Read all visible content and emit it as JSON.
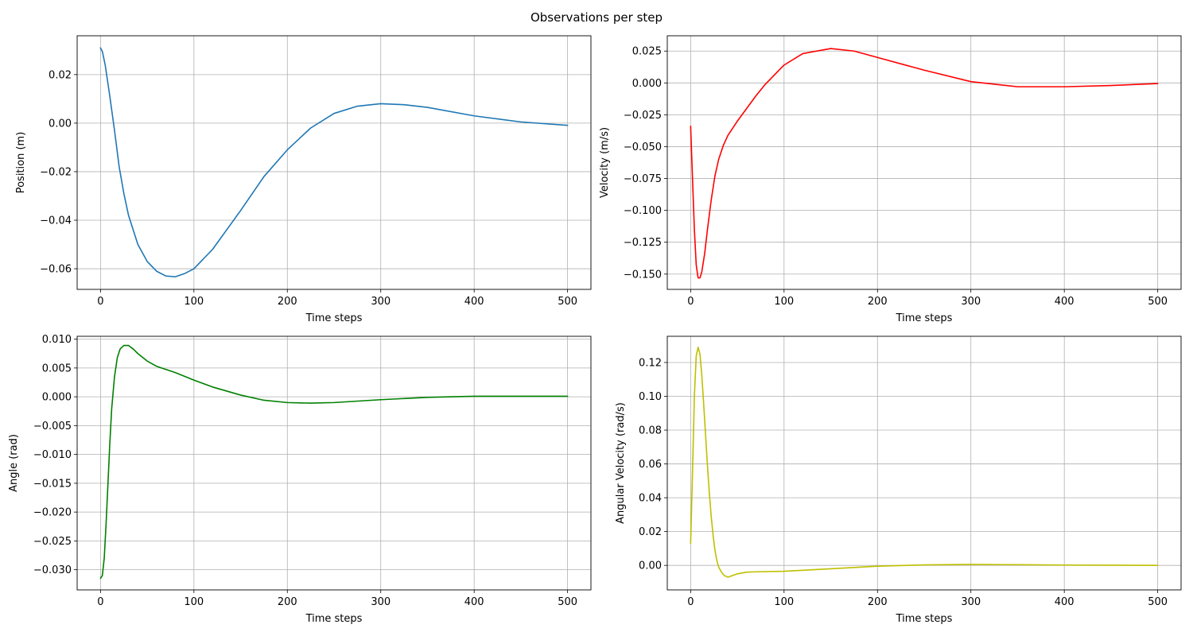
{
  "figure": {
    "suptitle": "Observations per step"
  },
  "chart_data": [
    {
      "type": "line",
      "xlabel": "Time steps",
      "ylabel": "Position (m)",
      "xlim": [
        -25,
        525
      ],
      "ylim": [
        -0.0685,
        0.036
      ],
      "xticks": [
        0,
        100,
        200,
        300,
        400,
        500
      ],
      "xtick_labels": [
        "0",
        "100",
        "200",
        "300",
        "400",
        "500"
      ],
      "yticks": [
        -0.06,
        -0.04,
        -0.02,
        0.0,
        0.02
      ],
      "ytick_labels": [
        "−0.06",
        "−0.04",
        "−0.02",
        "0.00",
        "0.02"
      ],
      "grid": true,
      "color": "#1f77b4",
      "x": [
        0,
        2,
        5,
        10,
        15,
        20,
        25,
        30,
        40,
        50,
        60,
        70,
        80,
        90,
        100,
        120,
        150,
        175,
        200,
        225,
        250,
        275,
        300,
        325,
        350,
        400,
        450,
        500
      ],
      "y": [
        0.031,
        0.0295,
        0.024,
        0.011,
        -0.003,
        -0.018,
        -0.029,
        -0.038,
        -0.05,
        -0.057,
        -0.061,
        -0.063,
        -0.0633,
        -0.062,
        -0.06,
        -0.052,
        -0.036,
        -0.022,
        -0.011,
        -0.002,
        0.004,
        0.007,
        0.008,
        0.0076,
        0.0065,
        0.003,
        0.0005,
        -0.0009
      ]
    },
    {
      "type": "line",
      "xlabel": "Time steps",
      "ylabel": "Velocity (m/s)",
      "xlim": [
        -25,
        525
      ],
      "ylim": [
        -0.162,
        0.037
      ],
      "xticks": [
        0,
        100,
        200,
        300,
        400,
        500
      ],
      "xtick_labels": [
        "0",
        "100",
        "200",
        "300",
        "400",
        "500"
      ],
      "yticks": [
        -0.15,
        -0.125,
        -0.1,
        -0.075,
        -0.05,
        -0.025,
        0.0,
        0.025
      ],
      "ytick_labels": [
        "−0.150",
        "−0.125",
        "−0.100",
        "−0.075",
        "−0.050",
        "−0.025",
        "0.000",
        "0.025"
      ],
      "grid": true,
      "color": "#ff0000",
      "x": [
        0,
        2,
        4,
        6,
        8,
        10,
        12,
        15,
        18,
        22,
        26,
        30,
        35,
        40,
        50,
        60,
        70,
        80,
        100,
        120,
        150,
        175,
        200,
        250,
        300,
        350,
        400,
        450,
        500
      ],
      "y": [
        -0.034,
        -0.075,
        -0.115,
        -0.143,
        -0.153,
        -0.153,
        -0.148,
        -0.134,
        -0.115,
        -0.092,
        -0.073,
        -0.06,
        -0.049,
        -0.041,
        -0.03,
        -0.02,
        -0.01,
        -0.001,
        0.014,
        0.023,
        0.027,
        0.025,
        0.02,
        0.01,
        0.001,
        -0.003,
        -0.003,
        -0.002,
        -0.0005
      ]
    },
    {
      "type": "line",
      "xlabel": "Time steps",
      "ylabel": "Angle (rad)",
      "xlim": [
        -25,
        525
      ],
      "ylim": [
        -0.0335,
        0.0105
      ],
      "xticks": [
        0,
        100,
        200,
        300,
        400,
        500
      ],
      "xtick_labels": [
        "0",
        "100",
        "200",
        "300",
        "400",
        "500"
      ],
      "yticks": [
        -0.03,
        -0.025,
        -0.02,
        -0.015,
        -0.01,
        -0.005,
        0.0,
        0.005,
        0.01
      ],
      "ytick_labels": [
        "−0.030",
        "−0.025",
        "−0.020",
        "−0.015",
        "−0.010",
        "−0.005",
        "0.000",
        "0.005",
        "0.010"
      ],
      "grid": true,
      "color": "#008000",
      "x": [
        0,
        2,
        4,
        6,
        8,
        10,
        12,
        15,
        18,
        21,
        25,
        30,
        35,
        40,
        50,
        60,
        80,
        100,
        120,
        150,
        175,
        200,
        225,
        250,
        300,
        350,
        400,
        450,
        500
      ],
      "y": [
        -0.0315,
        -0.031,
        -0.028,
        -0.022,
        -0.015,
        -0.008,
        -0.002,
        0.0035,
        0.0068,
        0.0083,
        0.0089,
        0.0089,
        0.0083,
        0.0075,
        0.0062,
        0.0053,
        0.0042,
        0.0029,
        0.0017,
        0.0003,
        -0.0006,
        -0.001,
        -0.0011,
        -0.001,
        -0.0005,
        -0.0001,
        0.0001,
        0.0001,
        0.0001
      ]
    },
    {
      "type": "line",
      "xlabel": "Time steps",
      "ylabel": "Angular Velocity (rad/s)",
      "xlim": [
        -25,
        525
      ],
      "ylim": [
        -0.0145,
        0.1355
      ],
      "xticks": [
        0,
        100,
        200,
        300,
        400,
        500
      ],
      "xtick_labels": [
        "0",
        "100",
        "200",
        "300",
        "400",
        "500"
      ],
      "yticks": [
        0.0,
        0.02,
        0.04,
        0.06,
        0.08,
        0.1,
        0.12
      ],
      "ytick_labels": [
        "0.00",
        "0.02",
        "0.04",
        "0.06",
        "0.08",
        "0.10",
        "0.12"
      ],
      "grid": true,
      "color": "#bfbf00",
      "x": [
        0,
        2,
        4,
        6,
        8,
        10,
        12,
        14,
        16,
        18,
        20,
        22,
        24,
        26,
        28,
        30,
        33,
        36,
        40,
        45,
        50,
        60,
        70,
        100,
        150,
        200,
        250,
        300,
        350,
        400,
        450,
        500
      ],
      "y": [
        0.013,
        0.055,
        0.1,
        0.124,
        0.129,
        0.125,
        0.112,
        0.095,
        0.077,
        0.059,
        0.043,
        0.029,
        0.018,
        0.009,
        0.003,
        -0.001,
        -0.004,
        -0.006,
        -0.007,
        -0.006,
        -0.005,
        -0.004,
        -0.0038,
        -0.0035,
        -0.002,
        -0.0005,
        0.0003,
        0.0006,
        0.0004,
        0.0002,
        0.0001,
        0.0
      ]
    }
  ]
}
